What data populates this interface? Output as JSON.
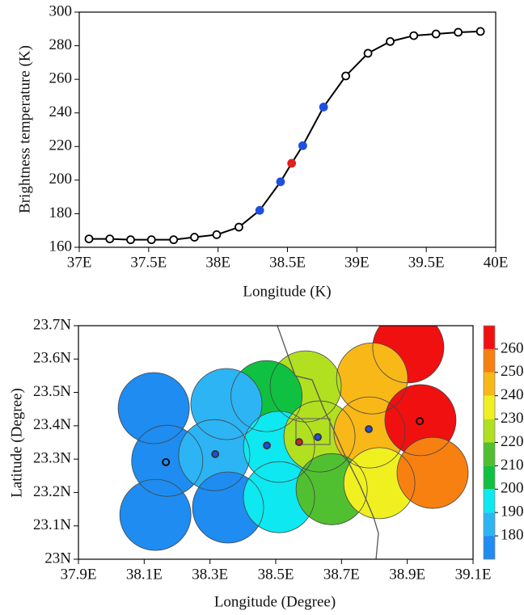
{
  "chart_data": [
    {
      "type": "line",
      "y_label": "Brightness temperature (K)",
      "x_label": "Longitude (K)",
      "x": [
        37.07,
        37.22,
        37.37,
        37.52,
        37.68,
        37.83,
        37.99,
        38.15,
        38.3,
        38.45,
        38.53,
        38.61,
        38.76,
        38.92,
        39.08,
        39.24,
        39.41,
        39.57,
        39.73,
        39.89
      ],
      "values": [
        165,
        165,
        164.5,
        164.5,
        164.5,
        166,
        167.5,
        172,
        182,
        199,
        210,
        220.5,
        243.5,
        262,
        275.5,
        282.5,
        286,
        287,
        288,
        288.5
      ],
      "color": "#000000",
      "marker_colors": [
        "#000000",
        "#000000",
        "#000000",
        "#000000",
        "#000000",
        "#000000",
        "#000000",
        "#000000",
        "#1f4fe0",
        "#1f4fe0",
        "#e01f1f",
        "#1f4fe0",
        "#1f4fe0",
        "#000000",
        "#000000",
        "#000000",
        "#000000",
        "#000000",
        "#000000",
        "#000000"
      ],
      "xlim": [
        37,
        40
      ],
      "xticks": [
        {
          "value": 37,
          "label": "37E"
        },
        {
          "value": 37.5,
          "label": "37.5E"
        },
        {
          "value": 38,
          "label": "38E"
        },
        {
          "value": 38.5,
          "label": "38.5E"
        },
        {
          "value": 39,
          "label": "39E"
        },
        {
          "value": 39.5,
          "label": "39.5E"
        },
        {
          "value": 40,
          "label": "40E"
        }
      ],
      "ylim": [
        160,
        300
      ],
      "yticks": [
        160,
        180,
        200,
        220,
        240,
        260,
        280,
        300
      ]
    },
    {
      "type": "circle-map",
      "y_label": "Latitude (Degree)",
      "x_label": "Longitude (Degree)",
      "circles": {
        "x": [
          38.903,
          38.793,
          38.591,
          38.472,
          38.35,
          38.129,
          38.17,
          38.313,
          38.51,
          38.633,
          38.785,
          38.94,
          38.134,
          38.355,
          38.51,
          38.67,
          38.815,
          38.977
        ],
        "y": [
          23.635,
          23.542,
          23.518,
          23.489,
          23.465,
          23.453,
          23.295,
          23.312,
          23.337,
          23.368,
          23.38,
          23.417,
          23.133,
          23.155,
          23.186,
          23.21,
          23.228,
          23.259
        ],
        "values": [
          265,
          242,
          222,
          205,
          185,
          175,
          175,
          185,
          192,
          222,
          242,
          262,
          175,
          175,
          195,
          212,
          232,
          252
        ]
      },
      "markers": {
        "x": [
          38.166,
          38.316,
          38.473,
          38.571,
          38.628,
          38.783,
          38.938
        ],
        "y": [
          23.291,
          23.315,
          23.341,
          23.351,
          23.366,
          23.39,
          23.414
        ],
        "colors": [
          "#000000",
          "#1f4fe0",
          "#1f4fe0",
          "#e01f1f",
          "#1f4fe0",
          "#1f4fe0",
          "#000000"
        ]
      },
      "xlim": [
        37.9,
        39.1
      ],
      "xticks": [
        {
          "value": 37.9,
          "label": "37.9E"
        },
        {
          "value": 38.1,
          "label": "38.1E"
        },
        {
          "value": 38.3,
          "label": "38.3E"
        },
        {
          "value": 38.5,
          "label": "38.5E"
        },
        {
          "value": 38.7,
          "label": "38.7E"
        },
        {
          "value": 38.9,
          "label": "38.9E"
        },
        {
          "value": 39.1,
          "label": "39.1E"
        }
      ],
      "ylim": [
        23,
        23.7
      ],
      "yticks": [
        {
          "value": 23,
          "label": "23N"
        },
        {
          "value": 23.1,
          "label": "23.1N"
        },
        {
          "value": 23.2,
          "label": "23.2N"
        },
        {
          "value": 23.3,
          "label": "23.3N"
        },
        {
          "value": 23.4,
          "label": "23.4N"
        },
        {
          "value": 23.5,
          "label": "23.5N"
        },
        {
          "value": 23.6,
          "label": "23.6N"
        },
        {
          "value": 23.7,
          "label": "23.7N"
        }
      ],
      "colorbar": {
        "lim": [
          170,
          270
        ],
        "ticks": [
          180,
          190,
          200,
          210,
          220,
          230,
          240,
          250,
          260
        ],
        "colors": [
          "#1e8cf0",
          "#2cb4f4",
          "#0ee8f0",
          "#10c040",
          "#50c030",
          "#b0e020",
          "#f0f020",
          "#f8b818",
          "#f88010",
          "#f01010"
        ]
      }
    }
  ]
}
